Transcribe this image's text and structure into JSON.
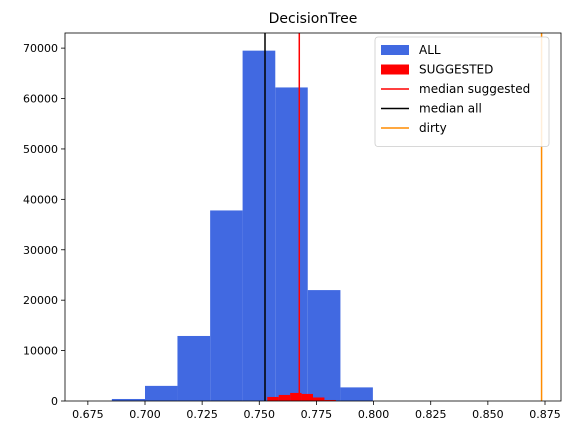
{
  "chart_data": {
    "type": "bar",
    "title": "DecisionTree",
    "xlabel": "",
    "ylabel": "",
    "xlim": [
      0.665,
      0.882
    ],
    "ylim": [
      0,
      73000
    ],
    "grid": false,
    "legend_placement": "top-right",
    "x_ticks": [
      0.675,
      0.7,
      0.725,
      0.75,
      0.775,
      0.8,
      0.825,
      0.85,
      0.875
    ],
    "x_tick_labels": [
      "0.675",
      "0.700",
      "0.725",
      "0.750",
      "0.775",
      "0.800",
      "0.825",
      "0.850",
      "0.875"
    ],
    "y_ticks": [
      0,
      10000,
      20000,
      30000,
      40000,
      50000,
      60000,
      70000
    ],
    "y_tick_labels": [
      "0",
      "10000",
      "20000",
      "30000",
      "40000",
      "50000",
      "60000",
      "70000"
    ],
    "histograms": [
      {
        "name": "ALL",
        "color": "#4169e1",
        "bin_edges": [
          0.6855,
          0.7,
          0.7142,
          0.7285,
          0.7427,
          0.757,
          0.7712,
          0.7855,
          0.7997
        ],
        "counts": [
          400,
          3000,
          12900,
          37800,
          69500,
          62200,
          22000,
          2700
        ]
      },
      {
        "name": "SUGGESTED",
        "color": "#ff0000",
        "bin_edges": [
          0.7535,
          0.7585,
          0.7635,
          0.7685,
          0.7735,
          0.7785,
          0.7835
        ],
        "counts": [
          800,
          1200,
          1600,
          1400,
          700,
          200
        ]
      }
    ],
    "vlines": [
      {
        "name": "median suggested",
        "x": 0.7675,
        "color": "#ff0000"
      },
      {
        "name": "median all",
        "x": 0.7525,
        "color": "#000000"
      },
      {
        "name": "dirty",
        "x": 0.8735,
        "color": "#ff8c00"
      }
    ],
    "legend": [
      {
        "label": "ALL",
        "kind": "patch",
        "color": "#4169e1"
      },
      {
        "label": "SUGGESTED",
        "kind": "patch",
        "color": "#ff0000"
      },
      {
        "label": "median suggested",
        "kind": "line",
        "color": "#ff0000"
      },
      {
        "label": "median all",
        "kind": "line",
        "color": "#000000"
      },
      {
        "label": "dirty",
        "kind": "line",
        "color": "#ff8c00"
      }
    ]
  }
}
